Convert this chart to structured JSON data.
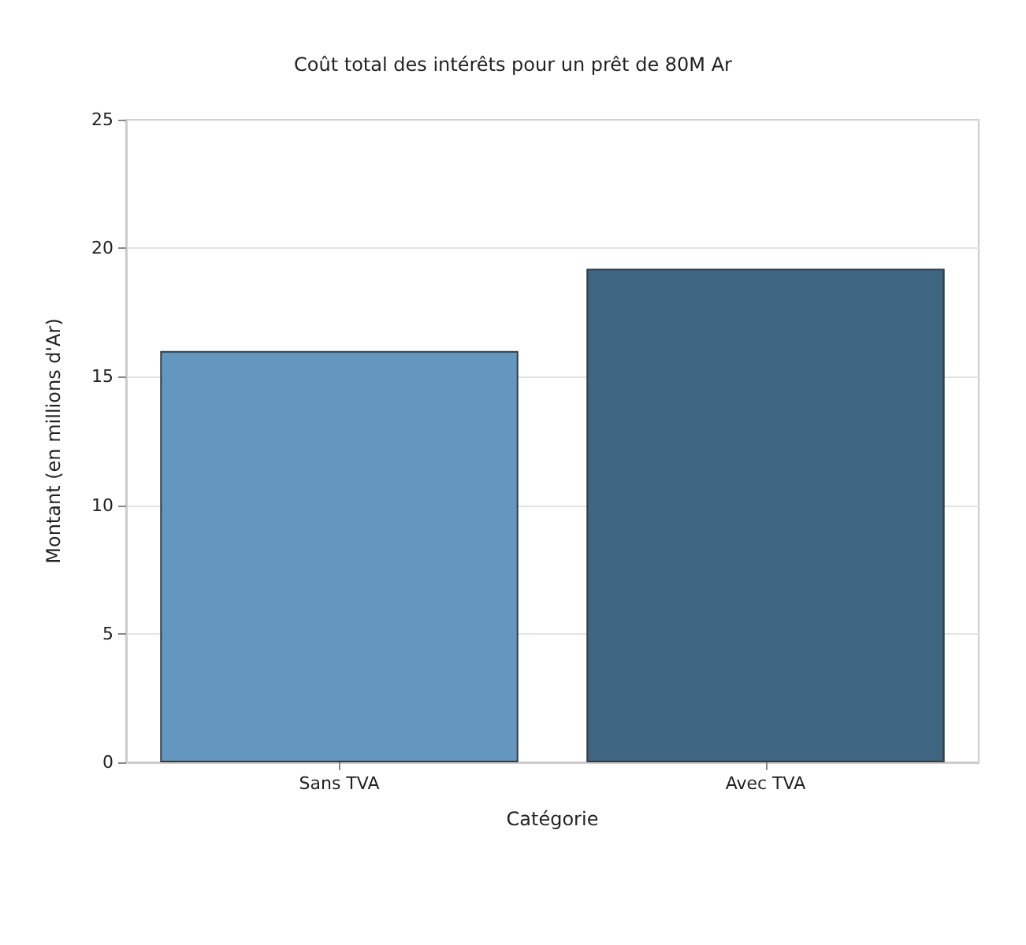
{
  "chart_data": {
    "type": "bar",
    "title": "Coût total des intérêts pour un prêt de 80M Ar",
    "xlabel": "Catégorie",
    "ylabel": "Montant (en millions d'Ar)",
    "categories": [
      "Sans TVA",
      "Avec TVA"
    ],
    "values": [
      16,
      19.2
    ],
    "colors": [
      "#6497bf",
      "#3e6582"
    ],
    "ylim": [
      0,
      25
    ],
    "yticks": [
      0,
      5,
      10,
      15,
      20,
      25
    ],
    "grid": "y"
  }
}
